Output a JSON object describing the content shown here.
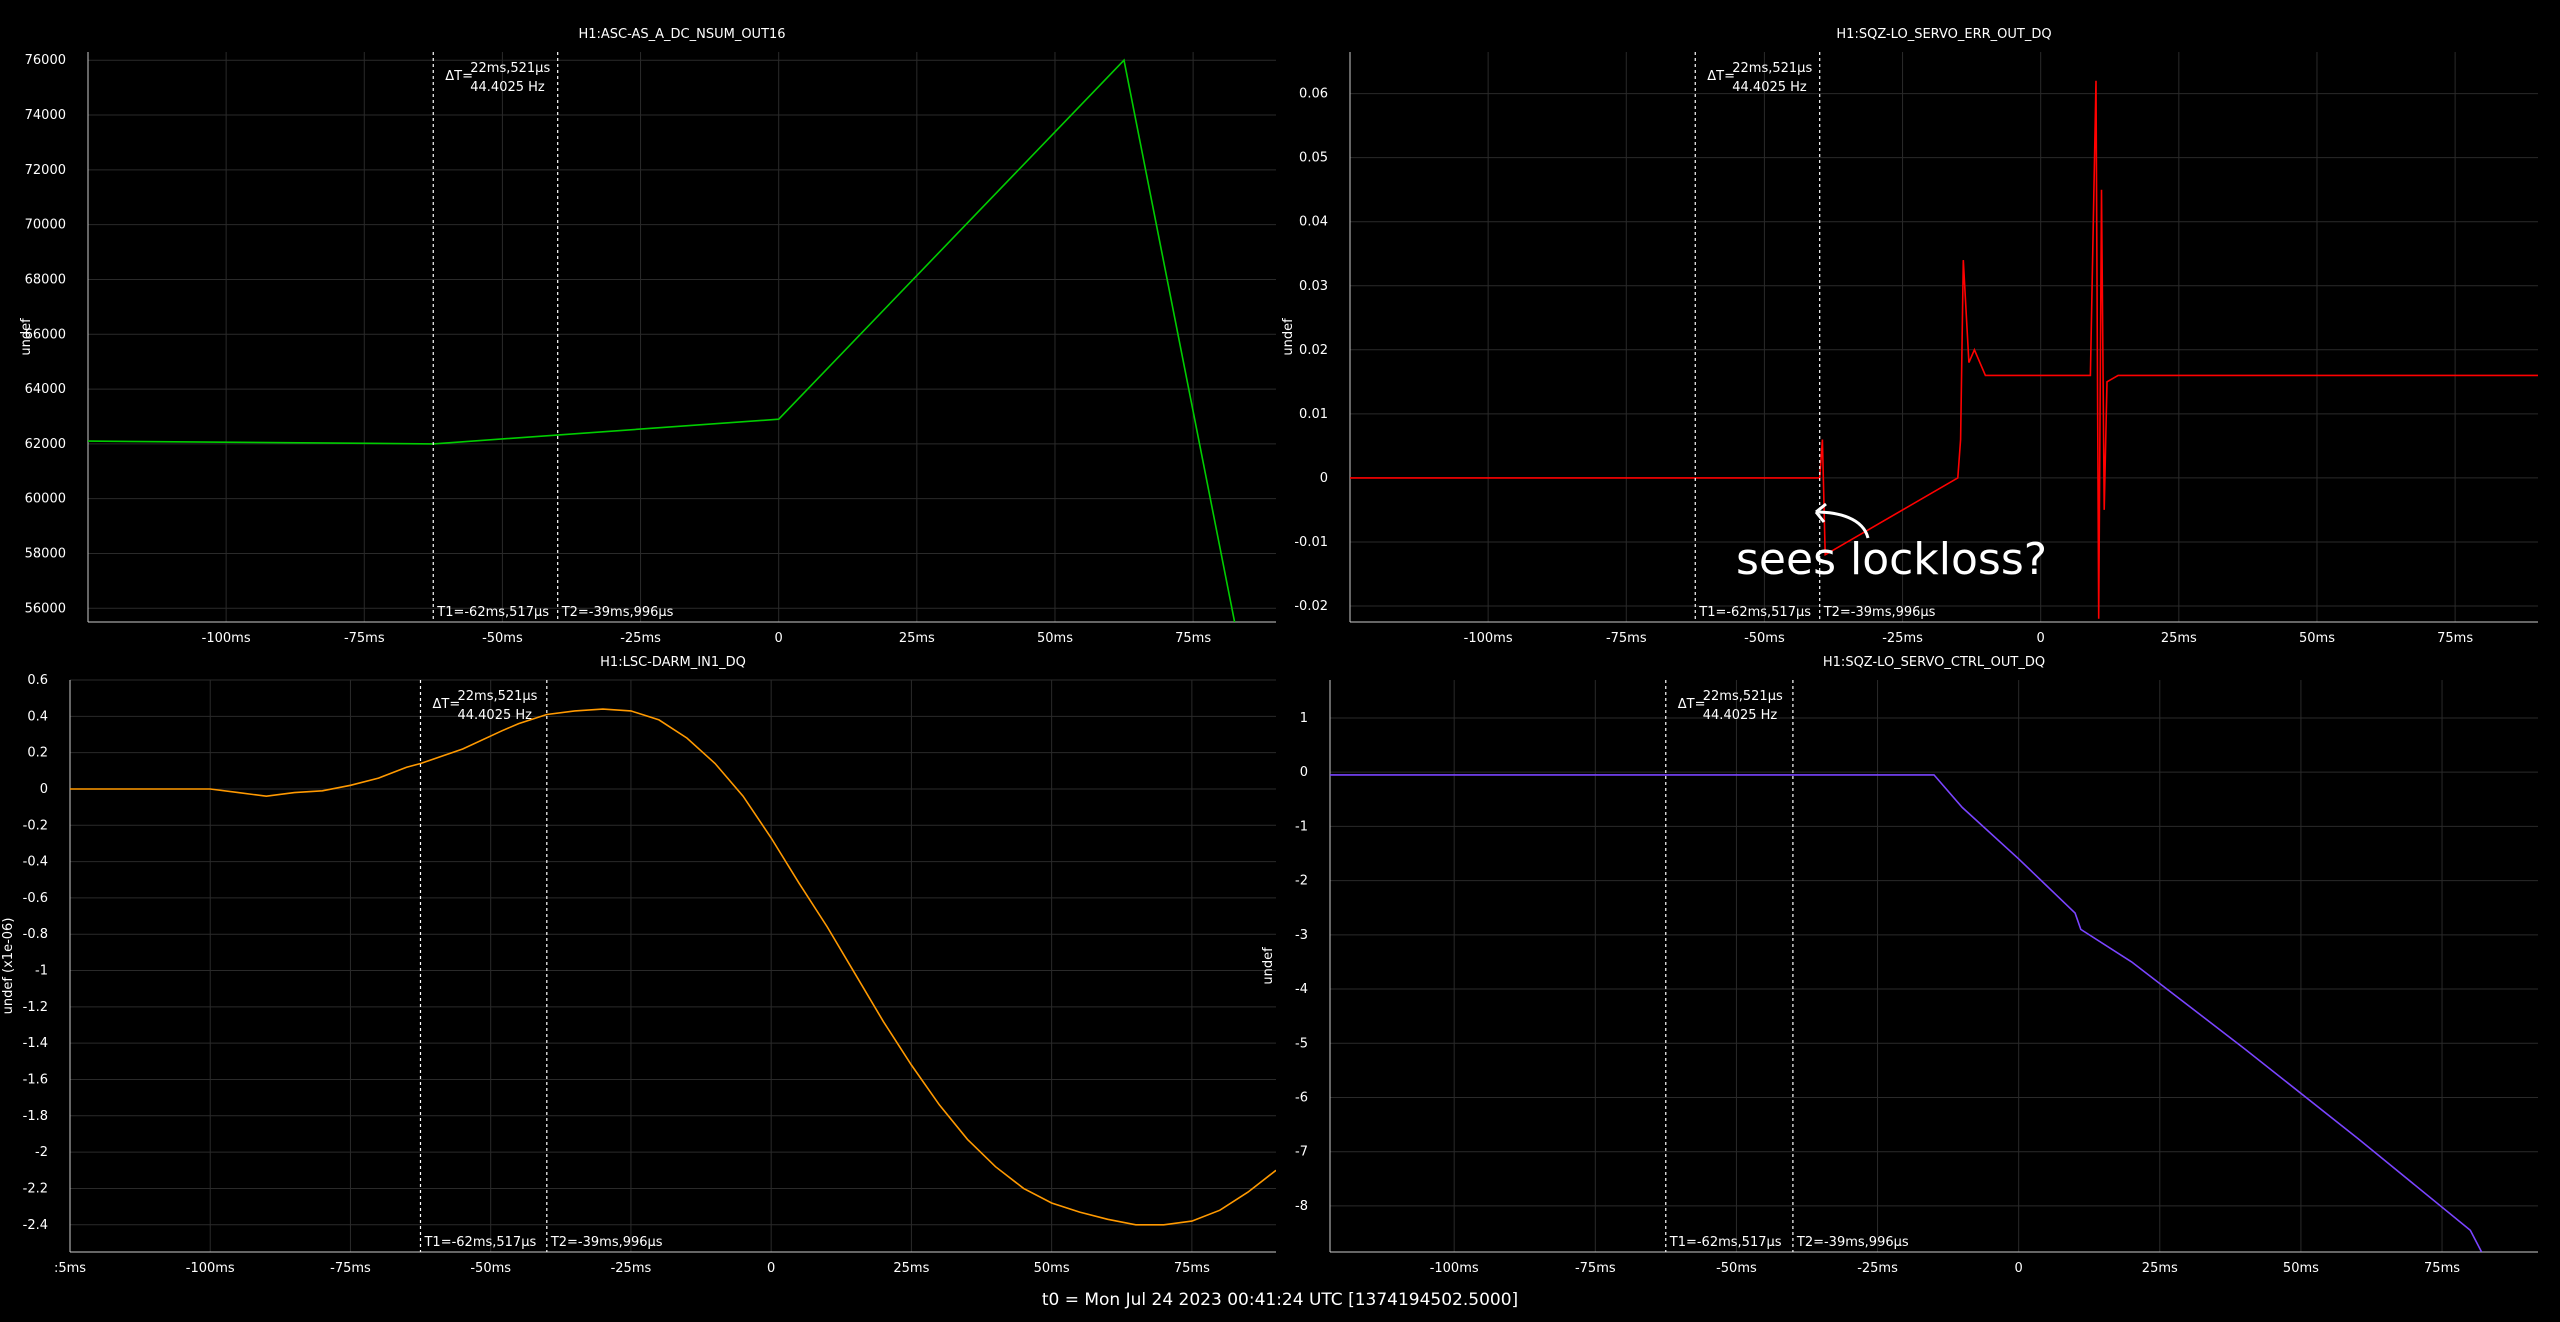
{
  "colors": {
    "background": "#000000",
    "grid": "#2a2a2a",
    "axis": "#ffffff",
    "cursor": "#ffffff"
  },
  "footer": {
    "text": "t0 = Mon Jul 24 2023 00:41:24 UTC [1374194502.5000]"
  },
  "annotation": {
    "text": "sees lockloss?"
  },
  "chart_data": [
    {
      "type": "line",
      "title": "H1:ASC-AS_A_DC_NSUM_OUT16",
      "ylabel": "undef",
      "color": "#00cc00",
      "xlim": [
        -125,
        90
      ],
      "ylim": [
        55500,
        76300
      ],
      "x_ticks": [
        -100,
        -75,
        -50,
        -25,
        0,
        25,
        50,
        75
      ],
      "x_tick_labels": [
        "-100ms",
        "-75ms",
        "-50ms",
        "-25ms",
        "0",
        "25ms",
        "50ms",
        "75ms"
      ],
      "y_ticks": [
        56000,
        58000,
        60000,
        62000,
        64000,
        66000,
        68000,
        70000,
        72000,
        74000,
        76000
      ],
      "y_tick_labels": [
        "56000",
        "58000",
        "60000",
        "62000",
        "64000",
        "66000",
        "68000",
        "70000",
        "72000",
        "74000",
        "76000"
      ],
      "series": [
        {
          "x": [
            -125,
            -62.5,
            0,
            62.5,
            82.5
          ],
          "y": [
            62100,
            62000,
            62900,
            76000,
            55500
          ]
        }
      ],
      "cursors": {
        "t1": -62.517,
        "t2": -39.996,
        "t1_label": "T1=-62ms,517µs",
        "t2_label": "T2=-39ms,996µs",
        "dt_label": "ΔT=",
        "dt_value": "22ms,521µs",
        "freq": "44.4025 Hz"
      }
    },
    {
      "type": "line",
      "title": "H1:SQZ-LO_SERVO_ERR_OUT_DQ",
      "ylabel": "undef",
      "color": "#ff0000",
      "xlim": [
        -125,
        90
      ],
      "ylim": [
        -0.0225,
        0.0665
      ],
      "x_ticks": [
        -100,
        -75,
        -50,
        -25,
        0,
        25,
        50,
        75
      ],
      "x_tick_labels": [
        "-100ms",
        "-75ms",
        "-50ms",
        "-25ms",
        "0",
        "25ms",
        "50ms",
        "75ms"
      ],
      "y_ticks": [
        -0.02,
        -0.01,
        0,
        0.01,
        0.02,
        0.03,
        0.04,
        0.05,
        0.06
      ],
      "y_tick_labels": [
        "-0.02",
        "-0.01",
        "0",
        "0.01",
        "0.02",
        "0.03",
        "0.04",
        "0.05",
        "0.06"
      ],
      "series": [
        {
          "x": [
            -125,
            -40,
            -39.5,
            -39,
            -15,
            -14.5,
            -14,
            -13,
            -12,
            -10,
            9,
            10,
            10.5,
            11,
            11.5,
            12,
            14,
            90
          ],
          "y": [
            0,
            0,
            0.006,
            -0.012,
            0,
            0.006,
            0.034,
            0.018,
            0.02,
            0.016,
            0.016,
            0.062,
            -0.022,
            0.045,
            -0.005,
            0.015,
            0.016,
            0.016
          ]
        }
      ],
      "cursors": {
        "t1": -62.517,
        "t2": -39.996,
        "t1_label": "T1=-62ms,517µs",
        "t2_label": "T2=-39ms,996µs",
        "dt_label": "ΔT=",
        "dt_value": "22ms,521µs",
        "freq": "44.4025 Hz"
      }
    },
    {
      "type": "line",
      "title": "H1:LSC-DARM_IN1_DQ",
      "ylabel": "undef (x1e-06)",
      "color": "#ff9900",
      "xlim": [
        -125,
        90
      ],
      "ylim": [
        -2.55,
        0.6
      ],
      "x_ticks": [
        -125,
        -100,
        -75,
        -50,
        -25,
        0,
        25,
        50,
        75
      ],
      "x_tick_labels": [
        ":5ms",
        "-100ms",
        "-75ms",
        "-50ms",
        "-25ms",
        "0",
        "25ms",
        "50ms",
        "75ms"
      ],
      "y_ticks": [
        -2.4,
        -2.2,
        -2,
        -1.8,
        -1.6,
        -1.4,
        -1.2,
        -1,
        -0.8,
        -0.6,
        -0.4,
        -0.2,
        0,
        0.2,
        0.4,
        0.6
      ],
      "y_tick_labels": [
        "-2.4",
        "-2.2",
        "-2",
        "-1.8",
        "-1.6",
        "-1.4",
        "-1.2",
        "-1",
        "-0.8",
        "-0.6",
        "-0.4",
        "-0.2",
        "0",
        "0.2",
        "0.4",
        "0.6"
      ],
      "series": [
        {
          "x": [
            -125,
            -110,
            -100,
            -95,
            -90,
            -85,
            -80,
            -75,
            -70,
            -65,
            -62.5,
            -55,
            -48,
            -45,
            -40,
            -35,
            -30,
            -25,
            -20,
            -15,
            -10,
            -5,
            0,
            5,
            10,
            15,
            20,
            25,
            30,
            35,
            40,
            45,
            50,
            55,
            60,
            65,
            70,
            75,
            80,
            85,
            90
          ],
          "y": [
            0,
            0,
            0,
            -0.02,
            -0.04,
            -0.02,
            -0.01,
            0.02,
            0.06,
            0.12,
            0.14,
            0.22,
            0.32,
            0.36,
            0.41,
            0.43,
            0.44,
            0.43,
            0.38,
            0.28,
            0.14,
            -0.04,
            -0.27,
            -0.52,
            -0.76,
            -1.02,
            -1.28,
            -1.52,
            -1.74,
            -1.93,
            -2.08,
            -2.2,
            -2.28,
            -2.33,
            -2.37,
            -2.4,
            -2.4,
            -2.38,
            -2.32,
            -2.22,
            -2.1
          ]
        }
      ],
      "cursors": {
        "t1": -62.517,
        "t2": -39.996,
        "t1_label": "T1=-62ms,517µs",
        "t2_label": "T2=-39ms,996µs",
        "dt_label": "ΔT=",
        "dt_value": "22ms,521µs",
        "freq": "44.4025 Hz"
      }
    },
    {
      "type": "line",
      "title": "H1:SQZ-LO_SERVO_CTRL_OUT_DQ",
      "ylabel": "undef",
      "color": "#7a44ff",
      "xlim": [
        -122,
        92
      ],
      "ylim": [
        -8.85,
        1.7
      ],
      "x_ticks": [
        -100,
        -75,
        -50,
        -25,
        0,
        25,
        50,
        75
      ],
      "x_tick_labels": [
        "-100ms",
        "-75ms",
        "-50ms",
        "-25ms",
        "0",
        "25ms",
        "50ms",
        "75ms"
      ],
      "y_ticks": [
        -8,
        -7,
        -6,
        -5,
        -4,
        -3,
        -2,
        -1,
        0,
        1
      ],
      "y_tick_labels": [
        "-8",
        "-7",
        "-6",
        "-5",
        "-4",
        "-3",
        "-2",
        "-1",
        "0",
        "1"
      ],
      "series": [
        {
          "x": [
            -122,
            -15,
            -10,
            0,
            5,
            10,
            11,
            20,
            40,
            60,
            80,
            82
          ],
          "y": [
            -0.05,
            -0.05,
            -0.65,
            -1.6,
            -2.1,
            -2.6,
            -2.9,
            -3.5,
            -5.1,
            -6.75,
            -8.45,
            -8.85
          ]
        }
      ],
      "cursors": {
        "t1": -62.517,
        "t2": -39.996,
        "t1_label": "T1=-62ms,517µs",
        "t2_label": "T2=-39ms,996µs",
        "dt_label": "ΔT=",
        "dt_value": "22ms,521µs",
        "freq": "44.4025 Hz"
      }
    }
  ]
}
